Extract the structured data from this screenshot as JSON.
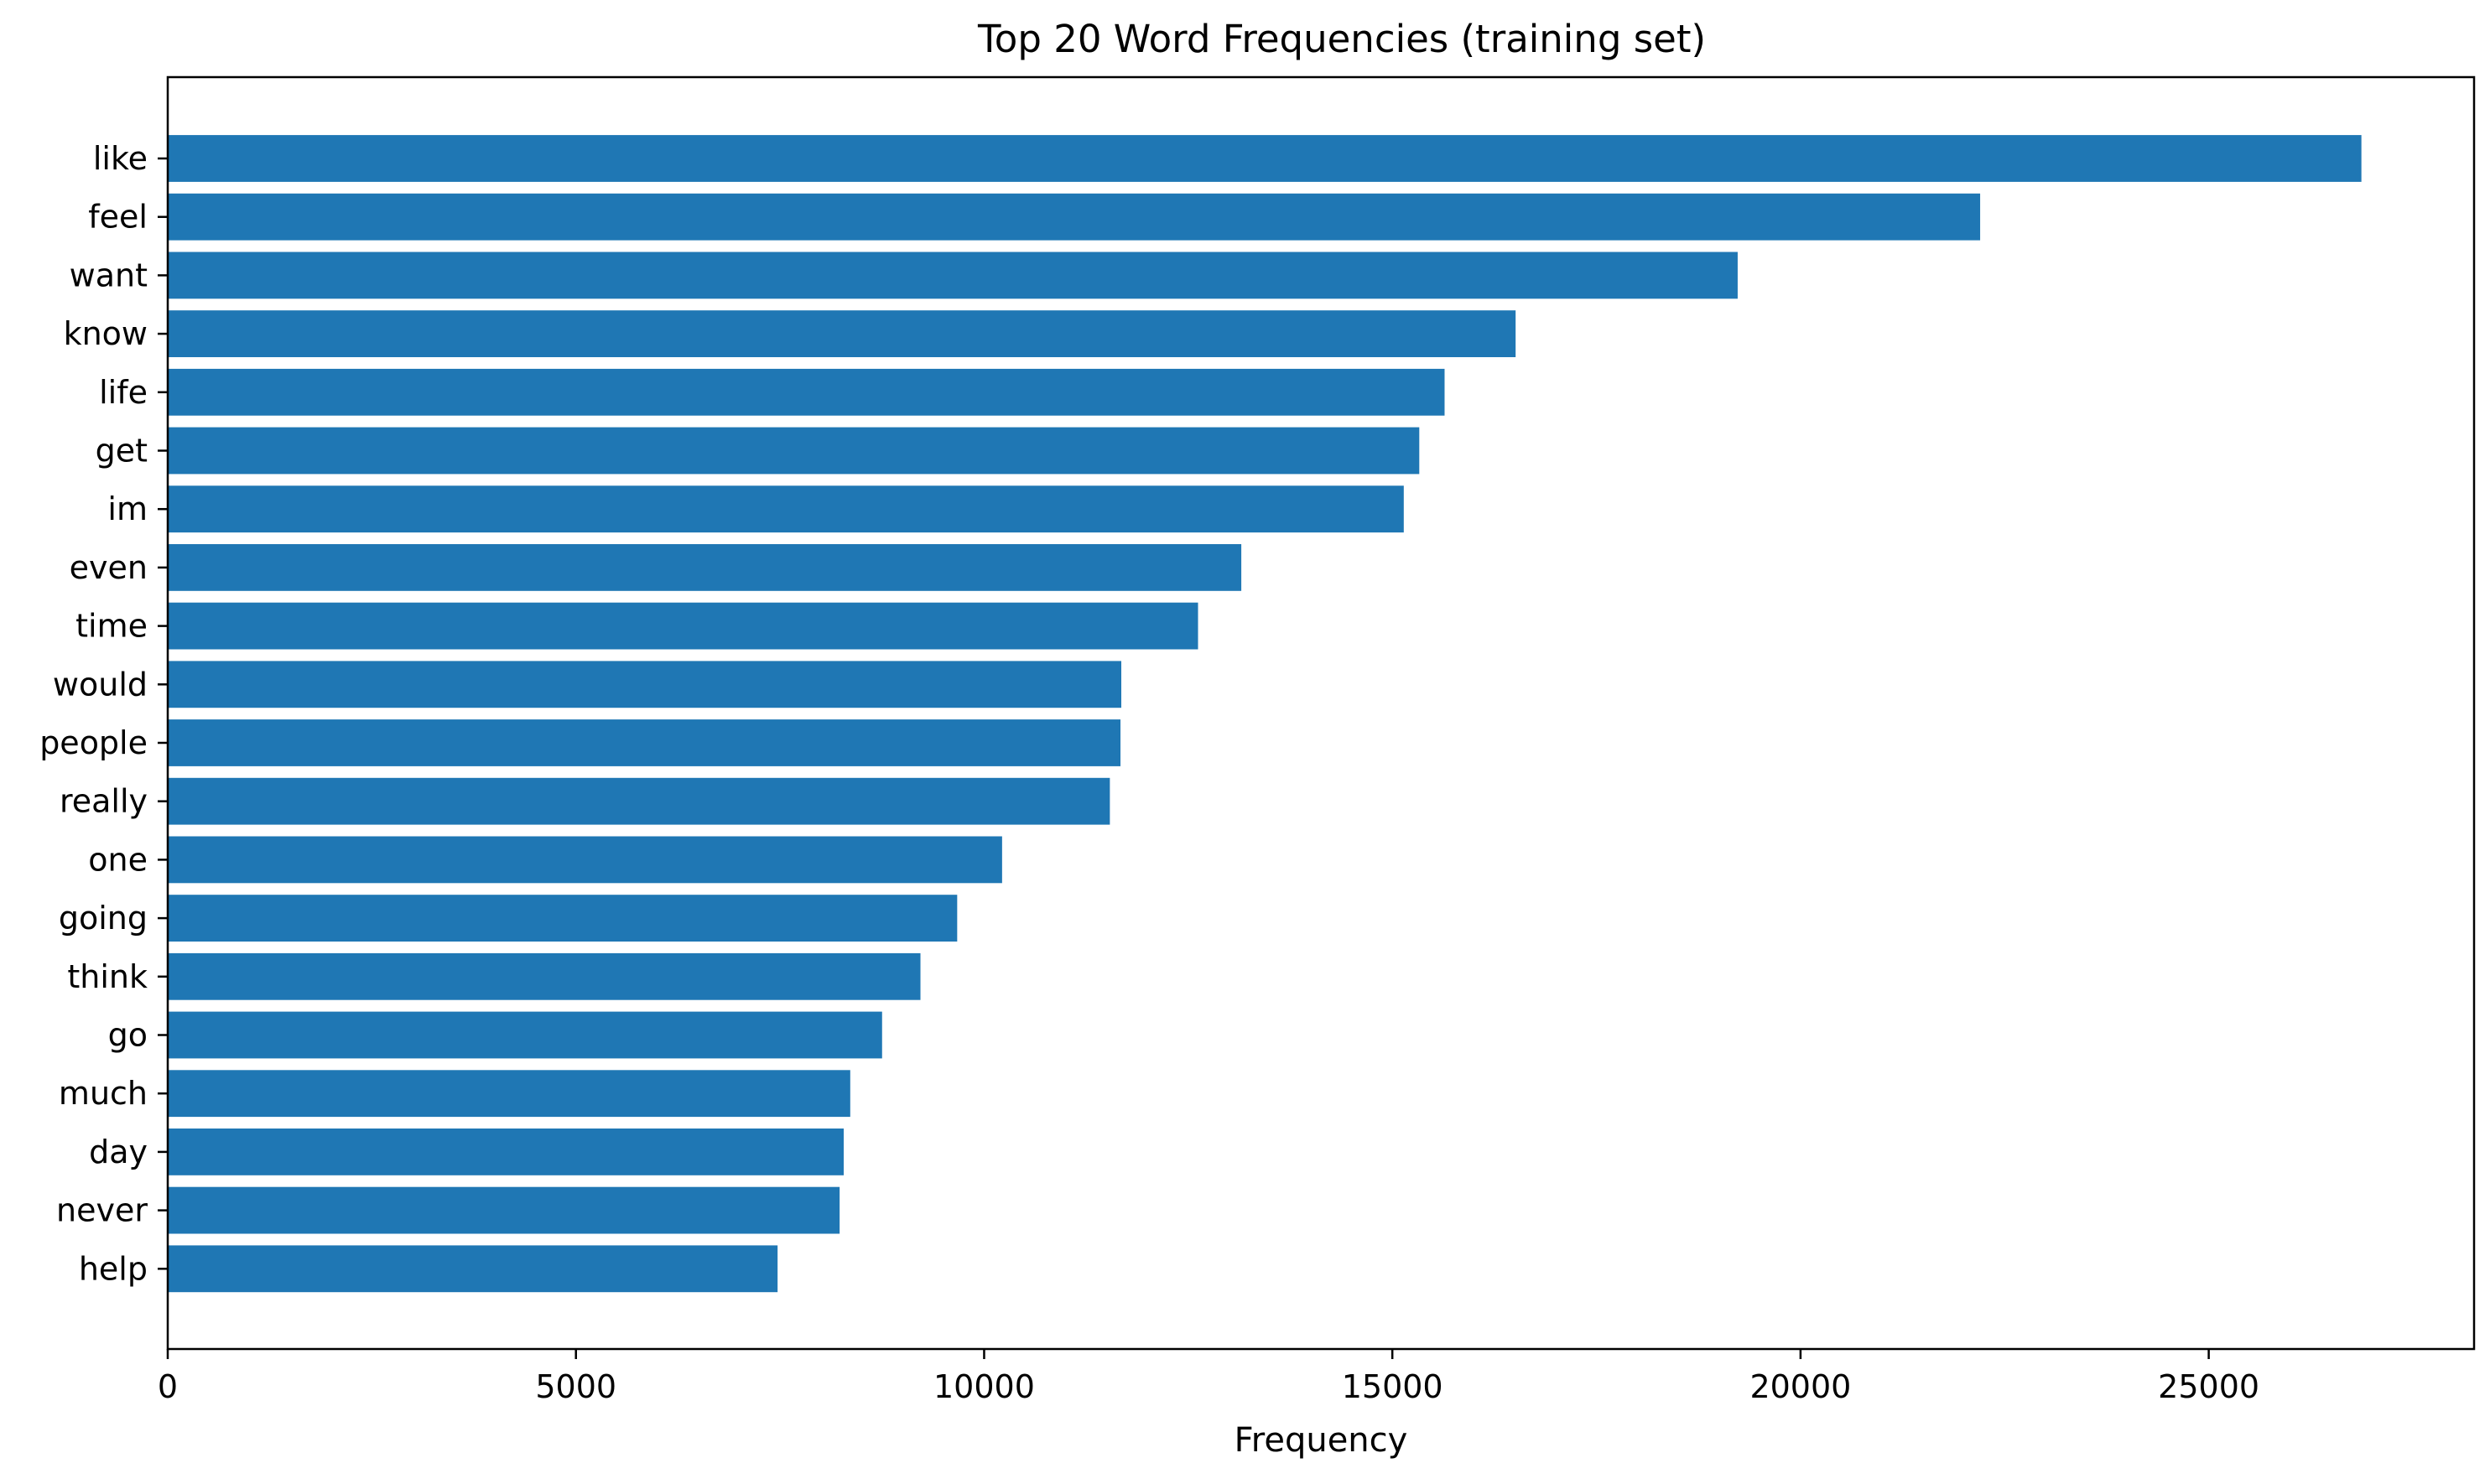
{
  "chart_data": {
    "type": "bar",
    "orientation": "horizontal",
    "title": "Top 20 Word Frequencies (training set)",
    "xlabel": "Frequency",
    "ylabel": "",
    "categories": [
      "like",
      "feel",
      "want",
      "know",
      "life",
      "get",
      "im",
      "even",
      "time",
      "would",
      "people",
      "really",
      "one",
      "going",
      "think",
      "go",
      "much",
      "day",
      "never",
      "help"
    ],
    "values": [
      26870,
      22200,
      19230,
      16510,
      15640,
      15330,
      15140,
      13150,
      12620,
      11680,
      11670,
      11540,
      10220,
      9670,
      9220,
      8750,
      8360,
      8280,
      8230,
      7470
    ],
    "xlim": [
      0,
      28250
    ],
    "xticks": [
      0,
      5000,
      10000,
      15000,
      20000,
      25000
    ],
    "grid": false,
    "legend": "none",
    "bar_color": "#1f77b4"
  }
}
